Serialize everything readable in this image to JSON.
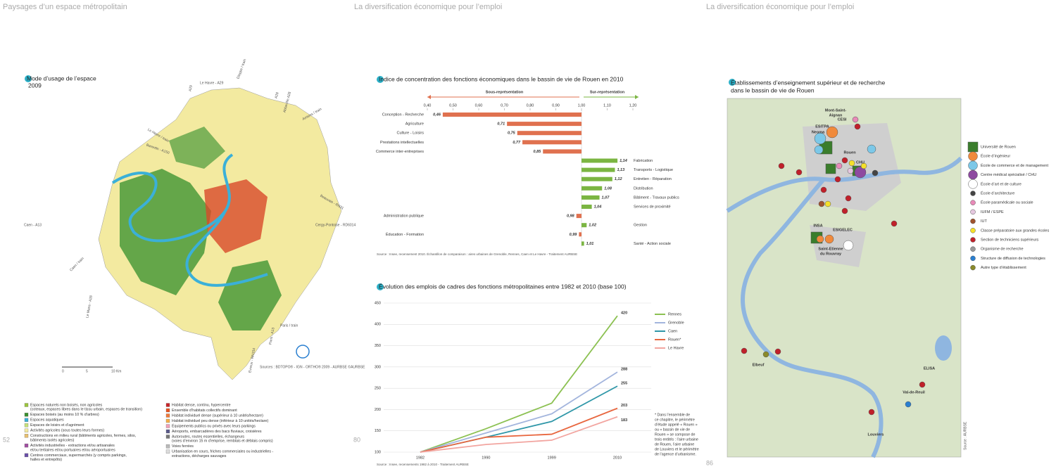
{
  "pages": {
    "left": {
      "header": "Paysages d’un espace métropolitain",
      "number": "52"
    },
    "middle": {
      "header": "La diversification économique pour l’emploi",
      "number": "80"
    },
    "right": {
      "header": "La diversification économique pour l’emploi",
      "number": "86"
    }
  },
  "land_use_map": {
    "title": "Mode d’usage de l’espace",
    "year": "2009",
    "road_labels": [
      "A29",
      "Le Havre - A29",
      "Dieppe / train",
      "A28",
      "Abbeville A28",
      "Amiens / train",
      "Le Havre / train",
      "Barentin - A150",
      "Beauvais - RN31",
      "Cergy-Pontoise - RD6014",
      "Caen - A13",
      "Caen / train",
      "Le Mans - A28",
      "Paris / train",
      "Paris - A13",
      "Evreux - RN154"
    ],
    "scale": [
      "0",
      "5",
      "10 Km"
    ],
    "source": "Sources : BDTOPO® - IGN - ORTHO® 2009 - AURBSE ©AURBSE",
    "legend": [
      {
        "color": "#9bc53d",
        "lines": [
          "Espaces naturels non boisés, non agricoles",
          "(coteaux, espaces libres dans le tissu urbain, espaces de transition)"
        ]
      },
      {
        "color": "#3a8f2e",
        "lines": [
          "Espaces boisés (au moins 10 % d’arbres)"
        ]
      },
      {
        "color": "#3bb0d8",
        "lines": [
          "Espaces aquatiques"
        ]
      },
      {
        "color": "#c7e27a",
        "lines": [
          "Espaces de loisirs et d’agrément"
        ]
      },
      {
        "color": "#f3eaa0",
        "lines": [
          "Activités agricoles (sous toutes leurs formes)"
        ]
      },
      {
        "color": "#e8c070",
        "lines": [
          "Constructions en milieu rural (bâtiments agricoles, fermes, silos,",
          "bâtiments isolés agricoles)"
        ]
      },
      {
        "color": "#a04fa0",
        "lines": [
          "Activités industrielles - extractions et/ou artisanales",
          "et/ou tertiaires et/ou portuaires et/ou aéroportuaires"
        ]
      },
      {
        "color": "#6a4fa8",
        "lines": [
          "Centres commerciaux, supermarchés (y compris parkings,",
          "halles et entrepôts)"
        ]
      },
      {
        "color": "#c8242a",
        "lines": [
          "Habitat dense, continu, hypercentre"
        ]
      },
      {
        "color": "#e8541f",
        "lines": [
          "Ensemble d’habitats collectifs dominant"
        ]
      },
      {
        "color": "#f07a3a",
        "lines": [
          "Habitat individuel dense (supérieur à 10 unités/hectare)"
        ]
      },
      {
        "color": "#f6b04a",
        "lines": [
          "Habitat individuel peu dense (inférieur à 10 unités/hectare)"
        ]
      },
      {
        "color": "#f2a0b8",
        "lines": [
          "Équipements publics ou privés avec leurs parkings"
        ]
      },
      {
        "color": "#5a5a8a",
        "lines": [
          "Aéroports, embarcadères des bacs fluviaux, croisières"
        ]
      },
      {
        "color": "#777777",
        "lines": [
          "Autoroutes, routes essentielles, échangeurs",
          "(voies d’environ 15 m d’emprise, remblais et déblais compris)"
        ]
      },
      {
        "color": "#bbbbbb",
        "lines": [
          "Voies ferrées"
        ]
      },
      {
        "color": "#dddddd",
        "lines": [
          "Urbanisation en cours, friches commerciales ou industrielles -",
          "extractions, décharges sauvages"
        ]
      }
    ]
  },
  "chart_data": [
    {
      "type": "hbar",
      "title": "Indice de concentration des fonctions économiques dans le bassin de vie de Rouen en 2010",
      "under_label": "Sous-représentation",
      "over_label": "Sur-représentation",
      "categories": [
        "Conception - Recherche",
        "Agriculture",
        "Culture - Loisirs",
        "Prestations intellectuelles",
        "Commerce inter-entreprises",
        "Fabrication",
        "Transports - Logistique",
        "Entretien - Réparation",
        "Distribution",
        "Bâtiment - Travaux publics",
        "Services de proximité",
        "Administration publique",
        "Gestion",
        "Éducation - Formation",
        "Santé - Action sociale"
      ],
      "values": [
        0.46,
        0.71,
        0.75,
        0.77,
        0.85,
        1.14,
        1.13,
        1.12,
        1.08,
        1.07,
        1.04,
        0.98,
        1.02,
        0.99,
        1.01
      ],
      "value_labels": [
        "0,46",
        "0,71",
        "0,75",
        "0,77",
        "0,85",
        "1,14",
        "1,13",
        "1,12",
        "1,08",
        "1,07",
        "1,04",
        "0,98",
        "1,02",
        "0,99",
        "1,01"
      ],
      "baseline": 1,
      "color_below": "#e0714f",
      "color_above": "#7bb542",
      "xlim": [
        0.4,
        1.2
      ],
      "xticks": [
        {
          "value": 0.4,
          "label": "0,40"
        },
        {
          "value": 0.5,
          "label": "0,50"
        },
        {
          "value": 0.6,
          "label": "0,60"
        },
        {
          "value": 0.7,
          "label": "0,70"
        },
        {
          "value": 0.8,
          "label": "0,80"
        },
        {
          "value": 0.9,
          "label": "0,90"
        },
        {
          "value": 1,
          "label": "1,00"
        },
        {
          "value": 1.1,
          "label": "1,10"
        },
        {
          "value": 1.2,
          "label": "1,20"
        }
      ],
      "source": "Source : Insee, recensement 2010. Échantillon de comparaison : aires urbaines de Grenoble, Rennes, Caen et Le Havre - Traitement AURBSE"
    },
    {
      "type": "line",
      "title": "Évolution des emplois de cadres des fonctions métropolitaines entre 1982 et 2010 (base 100)",
      "categories": [
        "1982",
        "1990",
        "1999",
        "2010"
      ],
      "series": [
        {
          "name": "Rennes",
          "color": "#8cc152",
          "values": [
            100,
            155,
            215,
            420
          ]
        },
        {
          "name": "Grenoble",
          "color": "#a3b5dd",
          "values": [
            100,
            145,
            190,
            288
          ]
        },
        {
          "name": "Caen",
          "color": "#2f97a8",
          "values": [
            100,
            135,
            172,
            255
          ]
        },
        {
          "name": "Rouen*",
          "color": "#e8663e",
          "values": [
            100,
            135,
            142,
            203
          ]
        },
        {
          "name": "Le Havre",
          "color": "#f2a5a0",
          "values": [
            100,
            118,
            128,
            183
          ]
        }
      ],
      "ylim": [
        100,
        450
      ],
      "yticks": [
        100,
        150,
        200,
        250,
        300,
        350,
        400,
        450
      ],
      "grid": true,
      "legend": "right",
      "note": [
        "* Dans l’ensemble de",
        "ce chapitre, le périmètre",
        "d’étude appelé « Rouen »",
        "ou « bassin de vie de",
        "Rouen » se compose de",
        "trois entités : l’aire urbaine",
        "de Rouen, l’aire urbaine",
        "de Louviers et le périmètre",
        "de l’agence d’urbanisme."
      ],
      "source": "Source : Insee, recensements 1982 à 2010 - Traitement AURBSE"
    }
  ],
  "institutions_map": {
    "title_lines": [
      "Établissements d’enseignement supérieur et de recherche",
      "dans le bassin de vie de Rouen"
    ],
    "place_labels": [
      {
        "lines": [
          "Mont-Saint-",
          "Aignan"
        ]
      },
      {
        "lines": [
          "CESI"
        ]
      },
      {
        "lines": [
          "ESITPA"
        ]
      },
      {
        "lines": [
          "Neoma"
        ]
      },
      {
        "lines": [
          "Rouen"
        ]
      },
      {
        "lines": [
          "CHU"
        ]
      },
      {
        "lines": [
          "INSA"
        ]
      },
      {
        "lines": [
          "ESIGELEC"
        ]
      },
      {
        "lines": [
          "Saint-Etienne",
          "du Rouvray"
        ]
      },
      {
        "lines": [
          "Elbeuf"
        ]
      },
      {
        "lines": [
          "ELISA"
        ]
      },
      {
        "lines": [
          "Val-de-Reuil"
        ]
      },
      {
        "lines": [
          "Louviers"
        ]
      }
    ],
    "legend": [
      {
        "name": "Université de Rouen",
        "color": "#3a7d2c",
        "shape": "square"
      },
      {
        "name": "École d’ingénieur",
        "color": "#f08a3c",
        "shape": "circle"
      },
      {
        "name": "École de commerce et de management",
        "color": "#7cc8e8",
        "shape": "circle"
      },
      {
        "name": "Centre médical spécialisé / CHU",
        "color": "#8e4aa0",
        "shape": "circle"
      },
      {
        "name": "École d’art et de culture",
        "color": "#ffffff",
        "shape": "circle"
      },
      {
        "name": "École d’architecture",
        "color": "#444444",
        "shape": "circle"
      },
      {
        "name": "École paramédicale ou sociale",
        "color": "#e88ab8",
        "shape": "circle"
      },
      {
        "name": "IUFM / ESPE",
        "color": "#e6c8e0",
        "shape": "circle"
      },
      {
        "name": "IUT",
        "color": "#a0522d",
        "shape": "circle"
      },
      {
        "name": "Classe préparatoire aux grandes écoles",
        "color": "#f5e02a",
        "shape": "circle"
      },
      {
        "name": "Section de techniciens supérieurs",
        "color": "#c0202a",
        "shape": "circle"
      },
      {
        "name": "Organisme de recherche",
        "color": "#999999",
        "shape": "circle"
      },
      {
        "name": "Structure de diffusion de technologies",
        "color": "#2a7fd0",
        "shape": "circle"
      },
      {
        "name": "Autre type d’établissement",
        "color": "#8a8a2a",
        "shape": "circle"
      }
    ],
    "source": "Source : AURBSE"
  }
}
